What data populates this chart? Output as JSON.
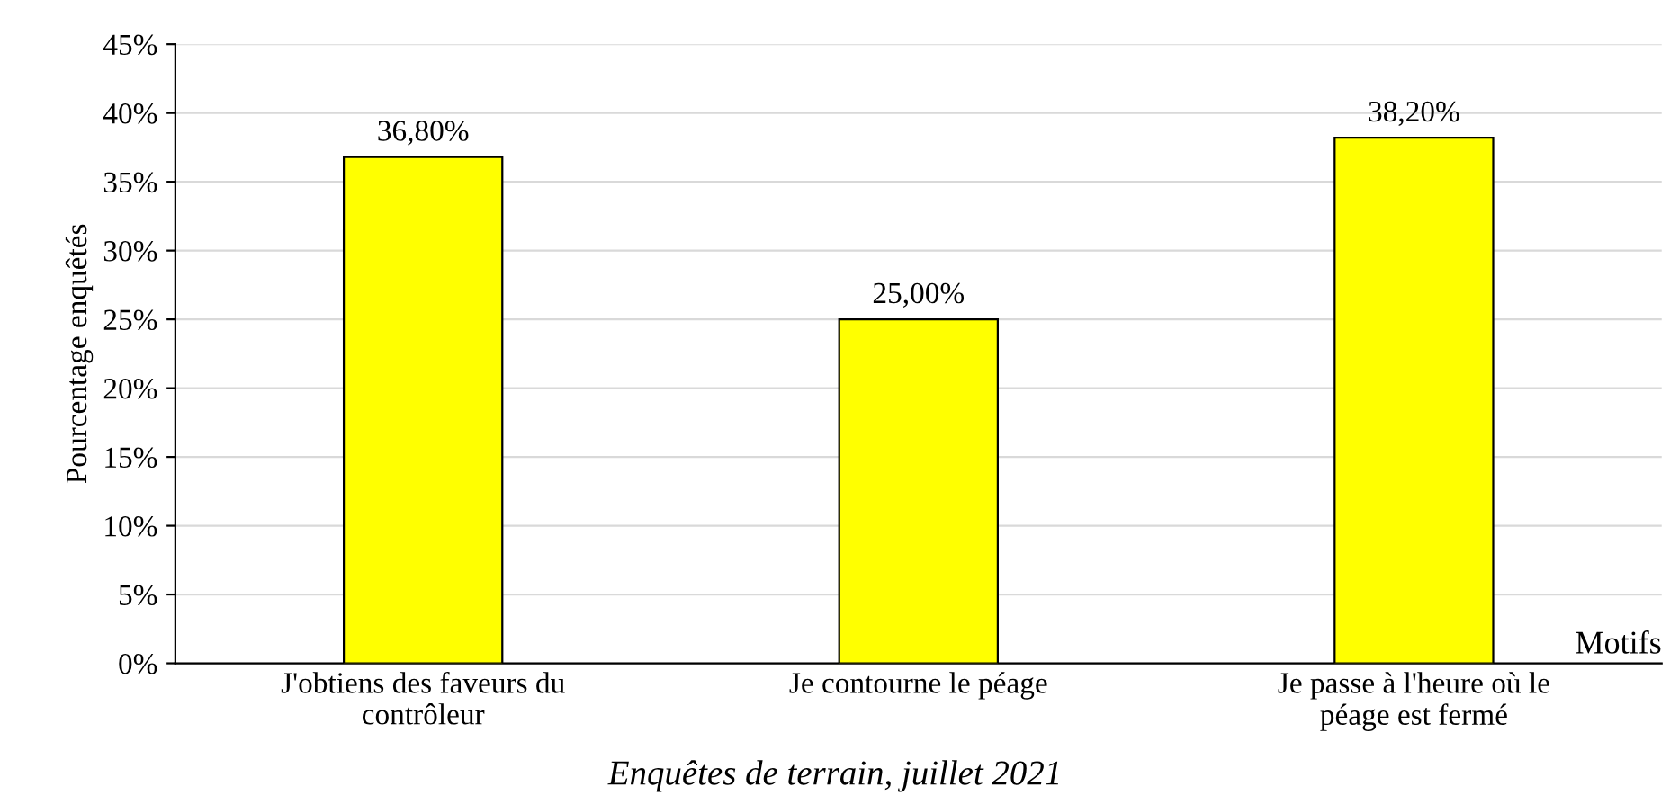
{
  "chart_data": {
    "type": "bar",
    "ylabel": "Pourcentage enquêtés",
    "xlabel": "Motifs",
    "categories": [
      "J'obtiens des faveurs du\ncontrôleur",
      "Je contourne le péage",
      "Je passe à l'heure où le\npéage est fermé"
    ],
    "values": [
      36.8,
      25.0,
      38.2
    ],
    "value_labels": [
      "36,80%",
      "25,00%",
      "38,20%"
    ],
    "color": "#ffff00",
    "ylim": [
      0,
      45
    ],
    "yticks": [
      {
        "value": 0,
        "label": "0%"
      },
      {
        "value": 5,
        "label": "5%"
      },
      {
        "value": 10,
        "label": "10%"
      },
      {
        "value": 15,
        "label": "15%"
      },
      {
        "value": 20,
        "label": "20%"
      },
      {
        "value": 25,
        "label": "25%"
      },
      {
        "value": 30,
        "label": "30%"
      },
      {
        "value": 35,
        "label": "35%"
      },
      {
        "value": 40,
        "label": "40%"
      },
      {
        "value": 45,
        "label": "45%"
      }
    ],
    "grid": "y",
    "annotations": [
      "Enquêtes de terrain, juillet 2021"
    ]
  }
}
